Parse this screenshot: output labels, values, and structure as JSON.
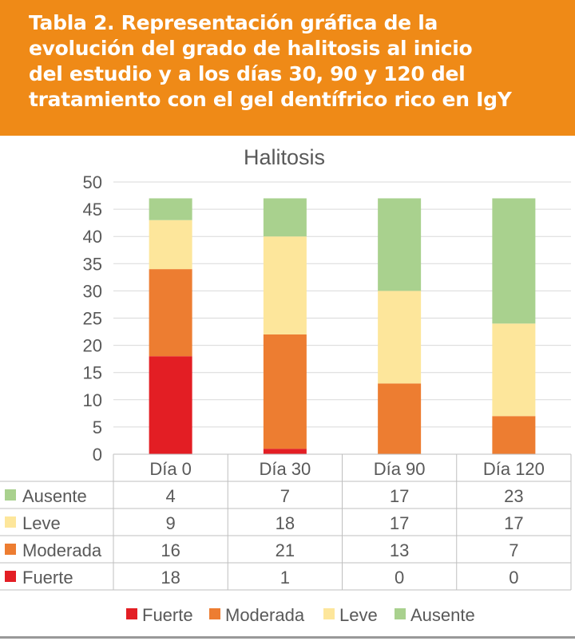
{
  "header": {
    "lines": [
      "Tabla 2. Representación gráfica de la",
      "evolución del grado de halitosis al inicio",
      "del estudio y a los días 30, 90 y 120 del",
      "tratamiento con el gel dentífrico rico en IgY"
    ]
  },
  "colors": {
    "header": "#ef8a17",
    "Fuerte": "#e31e24",
    "Moderada": "#ed7d31",
    "Leve": "#fde69b",
    "Ausente": "#a9d18e"
  },
  "chart_data": {
    "type": "bar",
    "stacked": true,
    "title": "Halitosis",
    "categories": [
      "Día 0",
      "Día 30",
      "Día 90",
      "Día 120"
    ],
    "series": [
      {
        "name": "Fuerte",
        "values": [
          18,
          1,
          0,
          0
        ]
      },
      {
        "name": "Moderada",
        "values": [
          16,
          21,
          13,
          7
        ]
      },
      {
        "name": "Leve",
        "values": [
          9,
          18,
          17,
          17
        ]
      },
      {
        "name": "Ausente",
        "values": [
          4,
          7,
          17,
          23
        ]
      }
    ],
    "ylim": [
      0,
      50
    ],
    "yticks": [
      0,
      5,
      10,
      15,
      20,
      25,
      30,
      35,
      40,
      45,
      50
    ],
    "table_rows": [
      "Ausente",
      "Leve",
      "Moderada",
      "Fuerte"
    ],
    "legend": [
      "Fuerte",
      "Moderada",
      "Leve",
      "Ausente"
    ],
    "legend_position": "bottom",
    "grid": true
  }
}
